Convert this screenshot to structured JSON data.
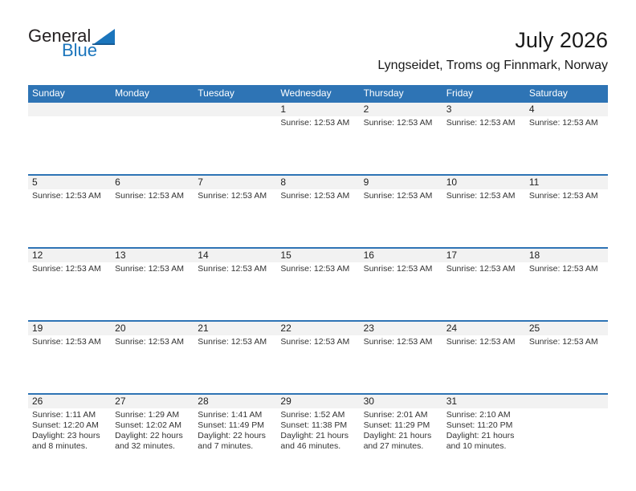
{
  "logo": {
    "general": "General",
    "blue": "Blue"
  },
  "header": {
    "title": "July 2026",
    "subtitle": "Lyngseidet, Troms og Finnmark, Norway"
  },
  "colors": {
    "header_blue": "#2e74b5",
    "week_divider_blue": "#2e74b5",
    "day_stripe_gray": "#f2f2f2",
    "logo_blue": "#1b75bc",
    "text_dark": "#333333"
  },
  "calendar": {
    "day_headers": [
      "Sunday",
      "Monday",
      "Tuesday",
      "Wednesday",
      "Thursday",
      "Friday",
      "Saturday"
    ],
    "weeks": [
      [
        {
          "num": "",
          "lines": []
        },
        {
          "num": "",
          "lines": []
        },
        {
          "num": "",
          "lines": []
        },
        {
          "num": "1",
          "lines": [
            "Sunrise: 12:53 AM"
          ]
        },
        {
          "num": "2",
          "lines": [
            "Sunrise: 12:53 AM"
          ]
        },
        {
          "num": "3",
          "lines": [
            "Sunrise: 12:53 AM"
          ]
        },
        {
          "num": "4",
          "lines": [
            "Sunrise: 12:53 AM"
          ]
        }
      ],
      [
        {
          "num": "5",
          "lines": [
            "Sunrise: 12:53 AM"
          ]
        },
        {
          "num": "6",
          "lines": [
            "Sunrise: 12:53 AM"
          ]
        },
        {
          "num": "7",
          "lines": [
            "Sunrise: 12:53 AM"
          ]
        },
        {
          "num": "8",
          "lines": [
            "Sunrise: 12:53 AM"
          ]
        },
        {
          "num": "9",
          "lines": [
            "Sunrise: 12:53 AM"
          ]
        },
        {
          "num": "10",
          "lines": [
            "Sunrise: 12:53 AM"
          ]
        },
        {
          "num": "11",
          "lines": [
            "Sunrise: 12:53 AM"
          ]
        }
      ],
      [
        {
          "num": "12",
          "lines": [
            "Sunrise: 12:53 AM"
          ]
        },
        {
          "num": "13",
          "lines": [
            "Sunrise: 12:53 AM"
          ]
        },
        {
          "num": "14",
          "lines": [
            "Sunrise: 12:53 AM"
          ]
        },
        {
          "num": "15",
          "lines": [
            "Sunrise: 12:53 AM"
          ]
        },
        {
          "num": "16",
          "lines": [
            "Sunrise: 12:53 AM"
          ]
        },
        {
          "num": "17",
          "lines": [
            "Sunrise: 12:53 AM"
          ]
        },
        {
          "num": "18",
          "lines": [
            "Sunrise: 12:53 AM"
          ]
        }
      ],
      [
        {
          "num": "19",
          "lines": [
            "Sunrise: 12:53 AM"
          ]
        },
        {
          "num": "20",
          "lines": [
            "Sunrise: 12:53 AM"
          ]
        },
        {
          "num": "21",
          "lines": [
            "Sunrise: 12:53 AM"
          ]
        },
        {
          "num": "22",
          "lines": [
            "Sunrise: 12:53 AM"
          ]
        },
        {
          "num": "23",
          "lines": [
            "Sunrise: 12:53 AM"
          ]
        },
        {
          "num": "24",
          "lines": [
            "Sunrise: 12:53 AM"
          ]
        },
        {
          "num": "25",
          "lines": [
            "Sunrise: 12:53 AM"
          ]
        }
      ],
      [
        {
          "num": "26",
          "lines": [
            "Sunrise: 1:11 AM",
            "Sunset: 12:20 AM",
            "Daylight: 23 hours and 8 minutes."
          ]
        },
        {
          "num": "27",
          "lines": [
            "Sunrise: 1:29 AM",
            "Sunset: 12:02 AM",
            "Daylight: 22 hours and 32 minutes."
          ]
        },
        {
          "num": "28",
          "lines": [
            "Sunrise: 1:41 AM",
            "Sunset: 11:49 PM",
            "Daylight: 22 hours and 7 minutes."
          ]
        },
        {
          "num": "29",
          "lines": [
            "Sunrise: 1:52 AM",
            "Sunset: 11:38 PM",
            "Daylight: 21 hours and 46 minutes."
          ]
        },
        {
          "num": "30",
          "lines": [
            "Sunrise: 2:01 AM",
            "Sunset: 11:29 PM",
            "Daylight: 21 hours and 27 minutes."
          ]
        },
        {
          "num": "31",
          "lines": [
            "Sunrise: 2:10 AM",
            "Sunset: 11:20 PM",
            "Daylight: 21 hours and 10 minutes."
          ]
        },
        {
          "num": "",
          "lines": []
        }
      ]
    ]
  }
}
